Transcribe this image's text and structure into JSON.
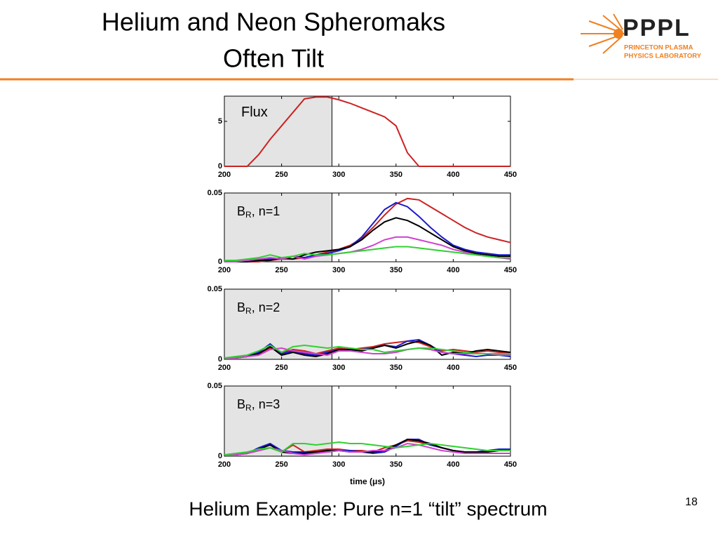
{
  "title": [
    "Helium and Neon Spheromaks",
    "Often Tilt"
  ],
  "logo": {
    "name": "PPPL",
    "line1": "PRINCETON PLASMA",
    "line2": "PHYSICS LABORATORY"
  },
  "caption": "Helium Example: Pure n=1 “tilt” spectrum",
  "page_number": "18",
  "chart_data": [
    {
      "type": "line",
      "label": "Flux",
      "x": [
        200,
        210,
        220,
        230,
        240,
        250,
        260,
        270,
        280,
        290,
        300,
        310,
        320,
        330,
        340,
        350,
        360,
        370,
        380,
        390,
        400,
        410,
        420,
        430,
        440,
        450
      ],
      "xlim": [
        200,
        450
      ],
      "xticks": [
        200,
        250,
        300,
        350,
        400,
        450
      ],
      "ylim": [
        0,
        7.8
      ],
      "yticks": [
        0,
        5
      ],
      "shade_x": [
        200,
        294
      ],
      "series": [
        {
          "color": "#cc2222",
          "values": [
            0,
            0,
            0,
            1.3,
            3.0,
            4.5,
            6.0,
            7.5,
            7.7,
            7.7,
            7.4,
            7.0,
            6.5,
            6.0,
            5.5,
            4.5,
            1.5,
            0,
            0,
            0,
            0,
            0,
            0,
            0,
            0,
            0
          ]
        }
      ]
    },
    {
      "type": "line",
      "label": "B",
      "label_sub": "R",
      "label_suffix": ", n=1",
      "x": [
        200,
        210,
        220,
        230,
        240,
        250,
        260,
        270,
        280,
        290,
        300,
        310,
        320,
        330,
        340,
        350,
        360,
        370,
        380,
        390,
        400,
        410,
        420,
        430,
        440,
        450
      ],
      "xlim": [
        200,
        450
      ],
      "xticks": [
        200,
        250,
        300,
        350,
        400,
        450
      ],
      "ylim": [
        0,
        0.05
      ],
      "yticks": [
        0,
        0.05
      ],
      "shade_x": [
        200,
        294
      ],
      "series": [
        {
          "color": "#cc2222",
          "values": [
            0,
            0,
            0,
            0,
            0.001,
            0.002,
            0.002,
            0.003,
            0.005,
            0.007,
            0.009,
            0.012,
            0.017,
            0.025,
            0.034,
            0.042,
            0.046,
            0.045,
            0.04,
            0.035,
            0.03,
            0.025,
            0.021,
            0.018,
            0.016,
            0.014
          ]
        },
        {
          "color": "#1a1acc",
          "values": [
            0,
            0,
            0,
            0.001,
            0.002,
            0.002,
            0.004,
            0.003,
            0.005,
            0.006,
            0.008,
            0.011,
            0.018,
            0.028,
            0.038,
            0.043,
            0.04,
            0.033,
            0.025,
            0.018,
            0.012,
            0.009,
            0.007,
            0.006,
            0.005,
            0.005
          ]
        },
        {
          "color": "#000000",
          "values": [
            0,
            0,
            0,
            0.001,
            0.001,
            0.003,
            0.002,
            0.005,
            0.007,
            0.008,
            0.009,
            0.011,
            0.016,
            0.023,
            0.029,
            0.032,
            0.03,
            0.026,
            0.021,
            0.016,
            0.011,
            0.008,
            0.006,
            0.005,
            0.004,
            0.004
          ]
        },
        {
          "color": "#d040d0",
          "values": [
            0,
            0,
            0.001,
            0.002,
            0.003,
            0.002,
            0.004,
            0.002,
            0.004,
            0.005,
            0.006,
            0.007,
            0.009,
            0.012,
            0.016,
            0.018,
            0.018,
            0.016,
            0.014,
            0.012,
            0.009,
            0.007,
            0.005,
            0.004,
            0.003,
            0.002
          ]
        },
        {
          "color": "#30d030",
          "values": [
            0.001,
            0.001,
            0.002,
            0.003,
            0.005,
            0.003,
            0.004,
            0.006,
            0.005,
            0.005,
            0.006,
            0.007,
            0.008,
            0.009,
            0.01,
            0.011,
            0.011,
            0.01,
            0.009,
            0.008,
            0.007,
            0.006,
            0.005,
            0.004,
            0.003,
            0.003
          ]
        }
      ]
    },
    {
      "type": "line",
      "label": "B",
      "label_sub": "R",
      "label_suffix": ", n=2",
      "x": [
        200,
        210,
        220,
        230,
        240,
        250,
        260,
        270,
        280,
        290,
        300,
        310,
        320,
        330,
        340,
        350,
        360,
        370,
        380,
        390,
        400,
        410,
        420,
        430,
        440,
        450
      ],
      "xlim": [
        200,
        450
      ],
      "xticks": [
        200,
        250,
        300,
        350,
        400,
        450
      ],
      "ylim": [
        0,
        0.05
      ],
      "yticks": [
        0,
        0.05
      ],
      "shade_x": [
        200,
        294
      ],
      "series": [
        {
          "color": "#cc2222",
          "values": [
            0.001,
            0.001,
            0.002,
            0.004,
            0.008,
            0.005,
            0.007,
            0.006,
            0.004,
            0.006,
            0.008,
            0.007,
            0.008,
            0.009,
            0.011,
            0.012,
            0.013,
            0.012,
            0.009,
            0.006,
            0.007,
            0.006,
            0.005,
            0.006,
            0.005,
            0.005
          ]
        },
        {
          "color": "#1a1acc",
          "values": [
            0.001,
            0.001,
            0.002,
            0.005,
            0.011,
            0.004,
            0.006,
            0.004,
            0.003,
            0.005,
            0.007,
            0.006,
            0.007,
            0.008,
            0.01,
            0.009,
            0.013,
            0.014,
            0.01,
            0.005,
            0.004,
            0.003,
            0.002,
            0.003,
            0.003,
            0.002
          ]
        },
        {
          "color": "#000000",
          "values": [
            0.001,
            0.001,
            0.002,
            0.004,
            0.009,
            0.003,
            0.005,
            0.003,
            0.002,
            0.004,
            0.007,
            0.007,
            0.006,
            0.008,
            0.01,
            0.008,
            0.011,
            0.013,
            0.01,
            0.003,
            0.005,
            0.004,
            0.006,
            0.007,
            0.006,
            0.005
          ]
        },
        {
          "color": "#d040d0",
          "values": [
            0.001,
            0.001,
            0.002,
            0.003,
            0.007,
            0.008,
            0.006,
            0.005,
            0.004,
            0.003,
            0.006,
            0.006,
            0.005,
            0.004,
            0.004,
            0.005,
            0.007,
            0.008,
            0.007,
            0.005,
            0.004,
            0.004,
            0.004,
            0.004,
            0.003,
            0.003
          ]
        },
        {
          "color": "#30d030",
          "values": [
            0.001,
            0.002,
            0.003,
            0.006,
            0.01,
            0.005,
            0.009,
            0.01,
            0.009,
            0.008,
            0.009,
            0.008,
            0.007,
            0.007,
            0.005,
            0.006,
            0.007,
            0.008,
            0.008,
            0.007,
            0.006,
            0.005,
            0.004,
            0.004,
            0.004,
            0.004
          ]
        }
      ]
    },
    {
      "type": "line",
      "label": "B",
      "label_sub": "R",
      "label_suffix": ", n=3",
      "xlabel": "time (μs)",
      "x": [
        200,
        210,
        220,
        230,
        240,
        250,
        260,
        270,
        280,
        290,
        300,
        310,
        320,
        330,
        340,
        350,
        360,
        370,
        380,
        390,
        400,
        410,
        420,
        430,
        440,
        450
      ],
      "xlim": [
        200,
        450
      ],
      "xticks": [
        200,
        250,
        300,
        350,
        400,
        450
      ],
      "ylim": [
        0,
        0.05
      ],
      "yticks": [
        0,
        0.05
      ],
      "shade_x": [
        200,
        294
      ],
      "series": [
        {
          "color": "#cc2222",
          "values": [
            0.001,
            0.001,
            0.002,
            0.004,
            0.006,
            0.003,
            0.008,
            0.003,
            0.004,
            0.005,
            0.005,
            0.004,
            0.004,
            0.003,
            0.006,
            0.008,
            0.011,
            0.01,
            0.008,
            0.006,
            0.004,
            0.003,
            0.002,
            0.003,
            0.004,
            0.004
          ]
        },
        {
          "color": "#1a1acc",
          "values": [
            0.001,
            0.001,
            0.002,
            0.006,
            0.009,
            0.004,
            0.003,
            0.003,
            0.003,
            0.003,
            0.004,
            0.004,
            0.003,
            0.002,
            0.003,
            0.007,
            0.012,
            0.012,
            0.008,
            0.006,
            0.004,
            0.003,
            0.003,
            0.004,
            0.005,
            0.005
          ]
        },
        {
          "color": "#000000",
          "values": [
            0.001,
            0.001,
            0.002,
            0.005,
            0.008,
            0.003,
            0.002,
            0.002,
            0.003,
            0.004,
            0.004,
            0.003,
            0.003,
            0.003,
            0.004,
            0.008,
            0.012,
            0.011,
            0.009,
            0.006,
            0.004,
            0.003,
            0.003,
            0.003,
            0.004,
            0.004
          ]
        },
        {
          "color": "#d040d0",
          "values": [
            0.001,
            0.001,
            0.002,
            0.004,
            0.006,
            0.004,
            0.002,
            0.001,
            0.002,
            0.003,
            0.004,
            0.003,
            0.003,
            0.004,
            0.004,
            0.006,
            0.009,
            0.008,
            0.006,
            0.004,
            0.003,
            0.002,
            0.002,
            0.002,
            0.002,
            0.002
          ]
        },
        {
          "color": "#30d030",
          "values": [
            0.001,
            0.002,
            0.003,
            0.005,
            0.006,
            0.003,
            0.009,
            0.009,
            0.008,
            0.009,
            0.01,
            0.009,
            0.009,
            0.008,
            0.007,
            0.006,
            0.007,
            0.008,
            0.009,
            0.008,
            0.007,
            0.006,
            0.005,
            0.004,
            0.004,
            0.004
          ]
        }
      ]
    }
  ]
}
